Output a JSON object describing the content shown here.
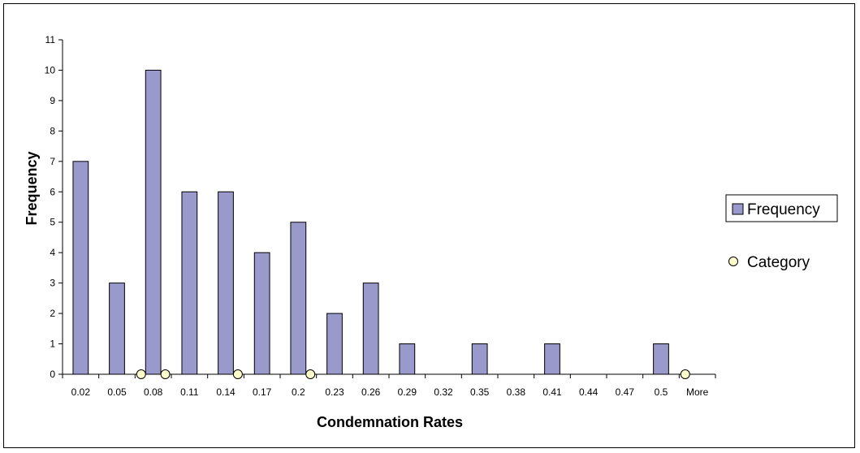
{
  "chart_data": {
    "type": "bar",
    "categories": [
      "0.02",
      "0.05",
      "0.08",
      "0.11",
      "0.14",
      "0.17",
      "0.2",
      "0.23",
      "0.26",
      "0.29",
      "0.32",
      "0.35",
      "0.38",
      "0.41",
      "0.44",
      "0.47",
      "0.5",
      "More"
    ],
    "series": [
      {
        "name": "Frequency",
        "type": "bar",
        "color": "#9999cc",
        "values": [
          7,
          3,
          10,
          6,
          6,
          4,
          5,
          2,
          3,
          1,
          0,
          1,
          0,
          1,
          0,
          0,
          1,
          0
        ]
      },
      {
        "name": "Category",
        "type": "scatter",
        "color": "#ffffcc",
        "points": [
          {
            "x": 0.07,
            "y": 0
          },
          {
            "x": 0.09,
            "y": 0
          },
          {
            "x": 0.15,
            "y": 0
          },
          {
            "x": 0.21,
            "y": 0
          },
          {
            "x": 0.52,
            "y": 0
          }
        ]
      }
    ],
    "xlabel": "Condemnation Rates",
    "ylabel": "Frequency",
    "ylim": [
      0,
      11
    ],
    "yticks": [
      "0",
      "1",
      "2",
      "3",
      "4",
      "5",
      "6",
      "7",
      "8",
      "9",
      "10",
      "11"
    ],
    "legend_position": "right",
    "grid": false
  }
}
